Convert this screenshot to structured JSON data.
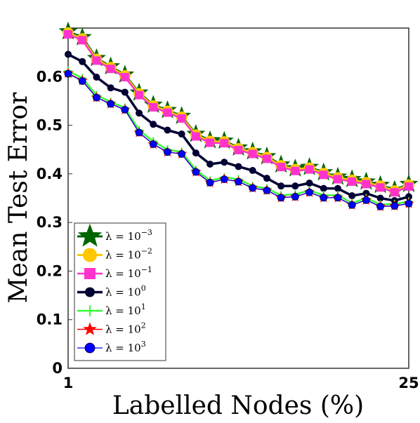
{
  "chart_data": {
    "type": "line",
    "xlabel": "Labelled Nodes (%)",
    "ylabel": "Mean Test Error",
    "xlim": [
      1,
      25
    ],
    "ylim": [
      0,
      0.7
    ],
    "xticks": [
      1,
      25
    ],
    "xtick_labels": [
      "1",
      "25"
    ],
    "yticks": [
      0,
      0.1,
      0.2,
      0.3,
      0.4,
      0.5,
      0.6
    ],
    "ytick_labels": [
      "0",
      "0.1",
      "0.2",
      "0.3",
      "0.4",
      "0.5",
      "0.6"
    ],
    "grid": false,
    "legend_position": "bottom-left",
    "x": [
      1,
      2,
      3,
      4,
      5,
      6,
      7,
      8,
      9,
      10,
      11,
      12,
      13,
      14,
      15,
      16,
      17,
      18,
      19,
      20,
      21,
      22,
      23,
      24,
      25
    ],
    "series": [
      {
        "name": "λ = 10^-3",
        "legend_base": "λ = 10",
        "legend_exp": "−3",
        "color": "#006400",
        "marker": "star",
        "marker_size": 13,
        "line_width": 3,
        "values": [
          0.693,
          0.681,
          0.638,
          0.621,
          0.604,
          0.567,
          0.542,
          0.531,
          0.519,
          0.482,
          0.469,
          0.468,
          0.454,
          0.446,
          0.436,
          0.419,
          0.411,
          0.414,
          0.403,
          0.394,
          0.389,
          0.384,
          0.377,
          0.367,
          0.379
        ]
      },
      {
        "name": "λ = 10^-2",
        "legend_base": "λ = 10",
        "legend_exp": "−2",
        "color": "#FFC800",
        "marker": "circle",
        "marker_size": 8,
        "line_width": 3,
        "values": [
          0.69,
          0.678,
          0.636,
          0.619,
          0.602,
          0.565,
          0.54,
          0.529,
          0.517,
          0.48,
          0.467,
          0.466,
          0.452,
          0.444,
          0.434,
          0.417,
          0.409,
          0.412,
          0.401,
          0.392,
          0.387,
          0.382,
          0.375,
          0.365,
          0.377
        ]
      },
      {
        "name": "λ = 10^-1",
        "legend_base": "λ = 10",
        "legend_exp": "−1",
        "color": "#FF33CC",
        "marker": "square",
        "marker_size": 6,
        "line_width": 2.5,
        "values": [
          0.687,
          0.675,
          0.633,
          0.616,
          0.599,
          0.562,
          0.537,
          0.526,
          0.514,
          0.477,
          0.464,
          0.463,
          0.449,
          0.441,
          0.431,
          0.414,
          0.406,
          0.409,
          0.398,
          0.389,
          0.384,
          0.379,
          0.372,
          0.362,
          0.374
        ]
      },
      {
        "name": "λ = 10^0",
        "legend_base": "λ = 10",
        "legend_exp": "0",
        "color": "#000033",
        "marker": "circle",
        "marker_size": 5,
        "line_width": 3.5,
        "values": [
          0.646,
          0.631,
          0.599,
          0.577,
          0.568,
          0.525,
          0.502,
          0.49,
          0.482,
          0.443,
          0.42,
          0.424,
          0.415,
          0.407,
          0.391,
          0.375,
          0.375,
          0.381,
          0.37,
          0.37,
          0.355,
          0.36,
          0.35,
          0.345,
          0.353
        ]
      },
      {
        "name": "λ = 10^1",
        "legend_base": "λ = 10",
        "legend_exp": "1",
        "color": "#33FF33",
        "marker": "plus",
        "marker_size": 6,
        "line_width": 2.5,
        "values": [
          0.612,
          0.597,
          0.562,
          0.548,
          0.536,
          0.49,
          0.467,
          0.45,
          0.445,
          0.408,
          0.386,
          0.393,
          0.389,
          0.375,
          0.37,
          0.356,
          0.358,
          0.366,
          0.356,
          0.356,
          0.34,
          0.35,
          0.337,
          0.338,
          0.343
        ]
      },
      {
        "name": "λ = 10^2",
        "legend_base": "λ = 10",
        "legend_exp": "2",
        "color": "#FF0000",
        "marker": "star",
        "marker_size": 7,
        "line_width": 1.5,
        "values": [
          0.607,
          0.592,
          0.557,
          0.544,
          0.532,
          0.485,
          0.461,
          0.445,
          0.441,
          0.404,
          0.382,
          0.389,
          0.384,
          0.371,
          0.366,
          0.351,
          0.353,
          0.362,
          0.351,
          0.351,
          0.336,
          0.346,
          0.333,
          0.334,
          0.339
        ]
      },
      {
        "name": "λ = 10^3",
        "legend_base": "λ = 10",
        "legend_exp": "3",
        "color": "#0000FF",
        "marker": "circle",
        "marker_size": 5,
        "line_width": 1.2,
        "values": [
          0.606,
          0.591,
          0.557,
          0.544,
          0.532,
          0.485,
          0.461,
          0.445,
          0.441,
          0.404,
          0.382,
          0.389,
          0.384,
          0.371,
          0.366,
          0.351,
          0.353,
          0.362,
          0.351,
          0.351,
          0.336,
          0.346,
          0.333,
          0.334,
          0.339
        ]
      }
    ]
  }
}
